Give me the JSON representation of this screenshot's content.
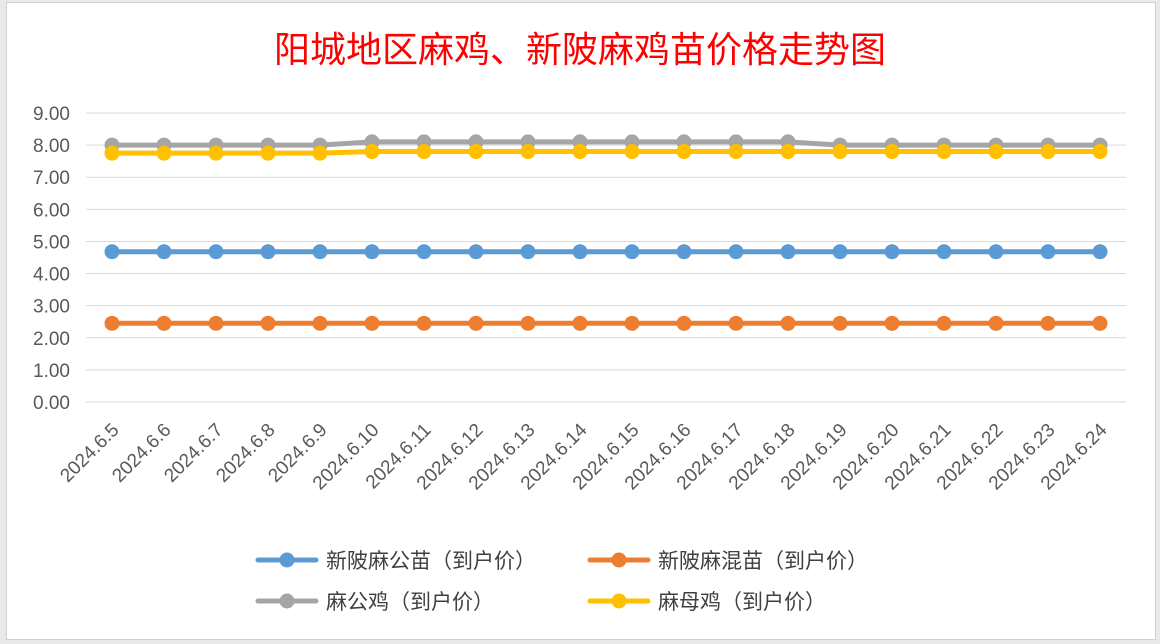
{
  "chart_data": {
    "type": "line",
    "title": "阳城地区麻鸡、新陂麻鸡苗价格走势图",
    "xlabel": "",
    "ylabel": "",
    "ylim": [
      0,
      9
    ],
    "yticks": [
      "0.00",
      "1.00",
      "2.00",
      "3.00",
      "4.00",
      "5.00",
      "6.00",
      "7.00",
      "8.00",
      "9.00"
    ],
    "grid": true,
    "legend_position": "bottom",
    "categories": [
      "2024.6.5",
      "2024.6.6",
      "2024.6.7",
      "2024.6.8",
      "2024.6.9",
      "2024.6.10",
      "2024.6.11",
      "2024.6.12",
      "2024.6.13",
      "2024.6.14",
      "2024.6.15",
      "2024.6.16",
      "2024.6.17",
      "2024.6.18",
      "2024.6.19",
      "2024.6.20",
      "2024.6.21",
      "2024.6.22",
      "2024.6.23",
      "2024.6.24"
    ],
    "series": [
      {
        "name": "新陂麻公苗（到户价）",
        "color": "#5b9bd5",
        "values": [
          4.68,
          4.68,
          4.68,
          4.68,
          4.68,
          4.68,
          4.68,
          4.68,
          4.68,
          4.68,
          4.68,
          4.68,
          4.68,
          4.68,
          4.68,
          4.68,
          4.68,
          4.68,
          4.68,
          4.68
        ]
      },
      {
        "name": "新陂麻混苗（到户价）",
        "color": "#ed7d31",
        "values": [
          2.45,
          2.45,
          2.45,
          2.45,
          2.45,
          2.45,
          2.45,
          2.45,
          2.45,
          2.45,
          2.45,
          2.45,
          2.45,
          2.45,
          2.45,
          2.45,
          2.45,
          2.45,
          2.45,
          2.45
        ]
      },
      {
        "name": "麻公鸡（到户价）",
        "color": "#a5a5a5",
        "values": [
          8.0,
          8.0,
          8.0,
          8.0,
          8.0,
          8.1,
          8.1,
          8.1,
          8.1,
          8.1,
          8.1,
          8.1,
          8.1,
          8.1,
          8.0,
          8.0,
          8.0,
          8.0,
          8.0,
          8.0
        ]
      },
      {
        "name": "麻母鸡（到户价）",
        "color": "#ffc000",
        "values": [
          7.75,
          7.75,
          7.75,
          7.75,
          7.75,
          7.8,
          7.8,
          7.8,
          7.8,
          7.8,
          7.8,
          7.8,
          7.8,
          7.8,
          7.8,
          7.8,
          7.8,
          7.8,
          7.8,
          7.8
        ]
      }
    ]
  }
}
